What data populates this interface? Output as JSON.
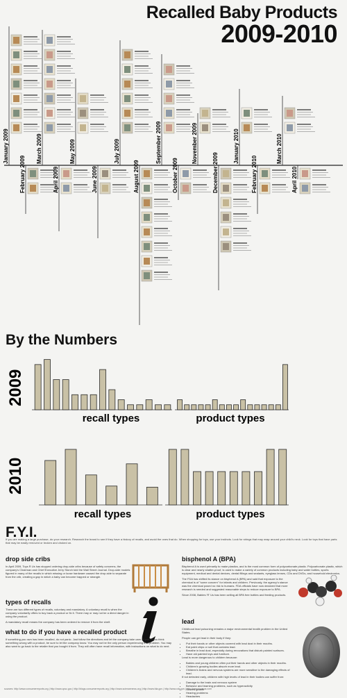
{
  "header": {
    "title_line1": "Recalled Baby Products",
    "title_line2": "2009-2010"
  },
  "timeline": {
    "months_top": [
      "January 2009",
      "March 2009",
      "May 2009",
      "July 2009",
      "September 2009",
      "November 2009",
      "January 2010",
      "March 2010"
    ],
    "months_bottom": [
      "February 2009",
      "April 2009",
      "June 2009",
      "August 2009",
      "October 2009",
      "December 2009",
      "February 2010",
      "April 2010"
    ]
  },
  "numbers": {
    "heading": "By the Numbers",
    "year_2009": "2009",
    "year_2010": "2010",
    "recall_types_label": "recall types",
    "product_types_label": "product types"
  },
  "chart_data": [
    {
      "type": "bar",
      "title": "2009 recall types",
      "categories": [
        "",
        "",
        "",
        "",
        "",
        "",
        "",
        "",
        "",
        "",
        "",
        "",
        "",
        "",
        ""
      ],
      "values": [
        9,
        10,
        6,
        6,
        3,
        3,
        3,
        8,
        4,
        2,
        1,
        1,
        2,
        1,
        1
      ],
      "ylim": [
        0,
        10.5
      ]
    },
    {
      "type": "bar",
      "title": "2009 product types",
      "categories": [
        "",
        "",
        "",
        "",
        "",
        "",
        "",
        "",
        "",
        "",
        "",
        "",
        "",
        "",
        "",
        ""
      ],
      "values": [
        2,
        1,
        1,
        1,
        1,
        2,
        1,
        1,
        1,
        2,
        1,
        1,
        1,
        1,
        1,
        9
      ],
      "ylim": [
        0,
        10.5
      ]
    },
    {
      "type": "bar",
      "title": "2010 recall types",
      "categories": [
        "",
        "",
        "",
        "",
        "",
        ""
      ],
      "values": [
        4,
        5,
        2.7,
        1.7,
        3.7,
        1.6
      ],
      "ylim": [
        0,
        5.5
      ]
    },
    {
      "type": "bar",
      "title": "2010 product types",
      "categories": [
        "",
        "",
        "",
        "",
        "",
        "",
        "",
        "",
        "",
        ""
      ],
      "values": [
        5,
        5,
        3,
        3,
        3,
        3,
        3,
        3,
        5,
        5
      ],
      "ylim": [
        0,
        5.5
      ]
    }
  ],
  "fyi": {
    "heading": "F.Y.I.",
    "intro": "If you are making a large purchase, do your research. Research the brand to see if they have a history of recalls, and avoid the ones that do. When shopping for toys, use your instincts. Look for strings that may wrap around your child's neck. Look for toys that have parts that may be easily removed or broken and choked on.",
    "cribs_heading": "drop side cribs",
    "cribs_text": "In April 2009, Toys R Us has stopped ordering drop-side cribs because of safety concerns, the company's Chairman and Chief Executive Jerry Storch told the Wall Street Journal. Drop-side models figured in many of the recalls in which missing or loose hardware caused the drop-side to separate from the crib, creating a gap in which a baby can become trapped or strangle.",
    "types_heading": "types of recalls",
    "types_text": "There are two different types of recalls, voluntary and mandatory. A voluntary recall is when the company voluntarily offers to buy back a product or fix it. There may or may not be a direct danger in using the product.",
    "types_text2": "A mandatory recall means the company has been ordered to remove it from the shelf.",
    "todo_heading": "what to do if you have a recalled product",
    "todo_text": "If something you own has been recalled, do not panic. Just follow the directions and let the company take care of you. If you think something wrong with a product, be sure to let the company know. You may not be the only person experiencing that problem. You may also want to go back to the retailer that you bought it from. They will often have recall information, with instructions on what to do next.",
    "bpa_heading": "bisphenol A (BPA)",
    "bpa_text": "Bisphenol A is used primarily to make plastics, and is the most common form of polycarbonate plastic. Polycarbonate plastic, which is clear and nearly shatter-proof, is used to make a variety of common products including baby and water bottles, sports equipment, medical and dental devices, dental fillings and sealants, eyeglass lenses, CDs and DVDs, and household electronics.",
    "bpa_text2": "The FDA has shifted its stance on bisphenol A (BPA) and said that exposure to the chemical is of \"some concern\" for infants and children. Previously, the agency's stance was the chemical posed no risk to humans. FDA officials have now declared that more research is needed and suggested reasonable steps to reduce exposure to BPA.",
    "bpa_text3": "Since 2008, Babies 'R' Us has been selling all BPA free bottles and feeding products.",
    "lead_heading": "lead",
    "lead_text": "Childhood lead poisoning remains a major environmental health problem in the United States.",
    "lead_text2": "People can get lead in their body if they:",
    "lead_list": [
      "Put their hands or other objects covered with lead dust in their mouths.",
      "Eat paint chips or soil that contains lead.",
      "Breathe in lead dust, especially during renovations that disturb painted surfaces.",
      "Have old painted toys and furniture."
    ],
    "lead_text3": "Lead is more dangerous to children because:",
    "lead_list2": [
      "Babies and young children often put their hands and other objects in their mouths.",
      "Children's growing bodies absorb more lead.",
      "Children's brains and nervous systems are more sensitive to the damaging effects of lead."
    ],
    "lead_text4": "If not detected early, children with high levels of lead in their bodies can suffer from:",
    "lead_list3": [
      "Damage to the brain and nervous system",
      "Behavior and learning problems, such as hyperactivity",
      "Slowed growth",
      "Hearing problems",
      "Headaches"
    ]
  },
  "footer": "sources: http://www.consumerreports.org | http://www.cpsc.gov | http://blogs.consumerreports.org | http://www.sciencenews.org | http://www.fda.gov | http://www.cdc.gov | http://www.toysrus.com"
}
